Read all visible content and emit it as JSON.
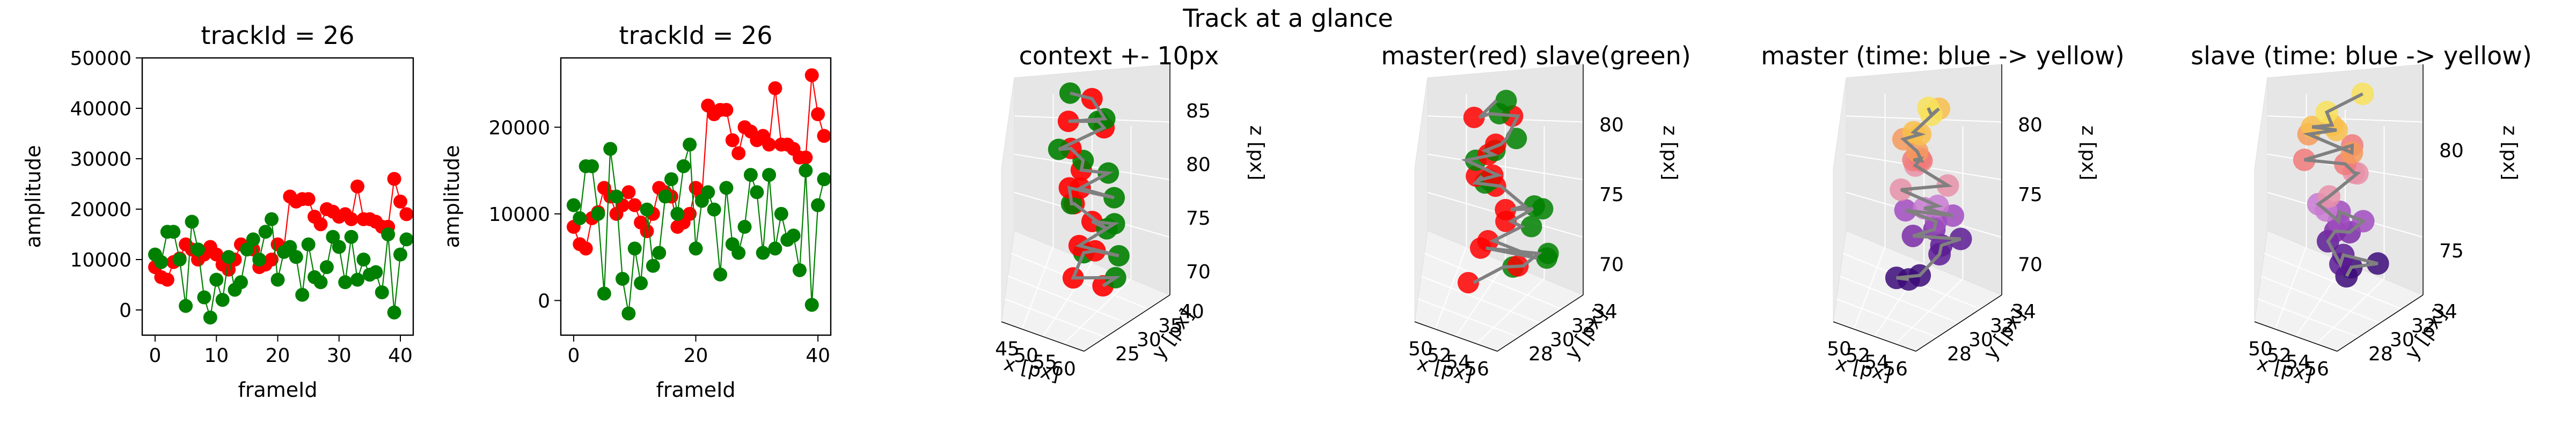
{
  "suptitle": "Track at a glance",
  "colors": {
    "master": "#ff0000",
    "slave": "#008000",
    "connector": "#808080"
  },
  "chart_data": [
    {
      "type": "line",
      "title": "trackId = 26",
      "xlabel": "frameId",
      "ylabel": "amplitude",
      "xlim": [
        -2.1,
        42.1
      ],
      "ylim": [
        -5000,
        50000
      ],
      "xticks": [
        "0",
        "10",
        "20",
        "30",
        "40"
      ],
      "yticks": [
        "0",
        "10000",
        "20000",
        "30000",
        "40000",
        "50000"
      ],
      "grid": false,
      "series": [
        {
          "color": "#ff0000",
          "values": [
            8500,
            6500,
            6000,
            9500,
            10200,
            13000,
            12000,
            10000,
            11000,
            12500,
            11000,
            9000,
            8000,
            10000,
            13000,
            12500,
            12000,
            8500,
            9000,
            10000,
            13000,
            12000,
            22500,
            21500,
            22000,
            22000,
            18500,
            17000,
            20000,
            19500,
            18500,
            19000,
            18000,
            24500,
            18000,
            18000,
            17500,
            16500,
            16500,
            26000,
            21500,
            19000
          ]
        },
        {
          "color": "#008000",
          "values": [
            11000,
            9500,
            15500,
            15500,
            10000,
            800,
            17500,
            12000,
            2500,
            -1500,
            6000,
            2000,
            10500,
            4000,
            5500,
            12000,
            14000,
            10000,
            15500,
            18000,
            6000,
            11500,
            12500,
            10500,
            3000,
            13000,
            6500,
            5500,
            8500,
            14500,
            12500,
            5500,
            14500,
            6000,
            10000,
            7000,
            7500,
            3500,
            15000,
            -500,
            11000,
            14000
          ]
        }
      ]
    },
    {
      "type": "line",
      "title": "trackId = 26",
      "xlabel": "frameId",
      "ylabel": "amplitude",
      "xlim": [
        -2.1,
        42.1
      ],
      "ylim": [
        -4000,
        28000
      ],
      "xticks": [
        "0",
        "20",
        "40"
      ],
      "yticks": [
        "0",
        "10000",
        "20000"
      ],
      "grid": false,
      "series": [
        {
          "color": "#ff0000",
          "values": [
            8500,
            6500,
            6000,
            9500,
            10200,
            13000,
            12000,
            10000,
            11000,
            12500,
            11000,
            9000,
            8000,
            10000,
            13000,
            12500,
            12000,
            8500,
            9000,
            10000,
            13000,
            12000,
            22500,
            21500,
            22000,
            22000,
            18500,
            17000,
            20000,
            19500,
            18500,
            19000,
            18000,
            24500,
            18000,
            18000,
            17500,
            16500,
            16500,
            26000,
            21500,
            19000
          ]
        },
        {
          "color": "#008000",
          "values": [
            11000,
            9500,
            15500,
            15500,
            10000,
            800,
            17500,
            12000,
            2500,
            -1500,
            6000,
            2000,
            10500,
            4000,
            5500,
            12000,
            14000,
            10000,
            15500,
            18000,
            6000,
            11500,
            12500,
            10500,
            3000,
            13000,
            6500,
            5500,
            8500,
            14500,
            12500,
            5500,
            14500,
            6000,
            10000,
            7000,
            7500,
            3500,
            15000,
            -500,
            11000,
            14000
          ]
        }
      ]
    },
    {
      "type": "scatter",
      "title": "context +- 10px",
      "xlabel": "x [px]",
      "ylabel": "y [px]",
      "zlabel": "z [px]",
      "xticks": [
        "45",
        "50",
        "55",
        "60"
      ],
      "yticks": [
        "25",
        "30",
        "35",
        "40"
      ],
      "zticks": [
        "70",
        "75",
        "80",
        "85"
      ],
      "grid": true
    },
    {
      "type": "scatter",
      "title": "master(red) slave(green)",
      "xlabel": "x [px]",
      "ylabel": "y [px]",
      "zlabel": "z [px]",
      "xticks": [
        "50",
        "52",
        "54",
        "56"
      ],
      "yticks": [
        "28",
        "30",
        "32",
        "34"
      ],
      "zticks": [
        "70",
        "75",
        "80"
      ],
      "grid": true
    },
    {
      "type": "scatter",
      "title": "master (time: blue -> yellow)",
      "xlabel": "x [px]",
      "ylabel": "y [px]",
      "zlabel": "z [px]",
      "xticks": [
        "50",
        "52",
        "54",
        "56"
      ],
      "yticks": [
        "28",
        "30",
        "32",
        "34"
      ],
      "zticks": [
        "70",
        "75",
        "80"
      ],
      "grid": true
    },
    {
      "type": "scatter",
      "title": "slave (time: blue -> yellow)",
      "xlabel": "x [px]",
      "ylabel": "y [px]",
      "zlabel": "z [px]",
      "xticks": [
        "50",
        "52",
        "54",
        "56"
      ],
      "yticks": [
        "28",
        "30",
        "32",
        "34"
      ],
      "zticks": [
        "75",
        "80"
      ],
      "grid": true
    }
  ]
}
